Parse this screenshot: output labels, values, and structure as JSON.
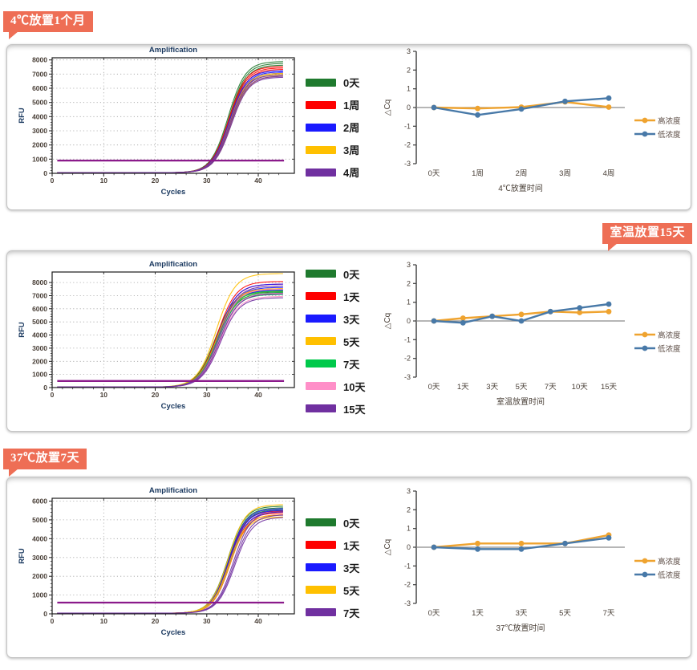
{
  "panels": [
    {
      "badge": {
        "label": "4℃放置1个月",
        "align": "left",
        "color": "#ee6e55"
      }
    },
    {
      "badge": {
        "label": "室温放置15天",
        "align": "right",
        "color": "#ee6e55"
      }
    },
    {
      "badge": {
        "label": "37℃放置7天",
        "align": "left",
        "color": "#ee6e55"
      }
    }
  ],
  "dcq_legend_labels": {
    "high": "高浓度",
    "low": "低浓度"
  },
  "chart_data": [
    {
      "id": "amplification-4c",
      "type": "line",
      "title": "Amplification",
      "xlabel": "Cycles",
      "ylabel": "RFU",
      "xlim": [
        0,
        47
      ],
      "xticks": [
        0,
        10,
        20,
        30,
        40
      ],
      "x_minor_step": 2,
      "ylim": [
        0,
        8150
      ],
      "yticks_max": 8000,
      "ytick_step": 1000,
      "y_minor_step": 200,
      "grid": "dotted",
      "legend_position": "right-of-plot",
      "threshold_line": {
        "y": 900,
        "color": "#8b1a8b"
      },
      "baseline_rfu": 40,
      "sigmoid_k": 0.6,
      "series": [
        {
          "name": "0天",
          "color": "#1f7a2e",
          "ct": 34.3,
          "plateaus": [
            7850,
            7720,
            7600
          ]
        },
        {
          "name": "1周",
          "color": "#fe0000",
          "ct": 34.4,
          "plateaus": [
            7500,
            7400,
            7300
          ]
        },
        {
          "name": "2周",
          "color": "#1a1aff",
          "ct": 34.5,
          "plateaus": [
            7200,
            7120,
            7040
          ]
        },
        {
          "name": "3周",
          "color": "#ffc000",
          "ct": 34.6,
          "plateaus": [
            7020,
            6940,
            6830
          ]
        },
        {
          "name": "4周",
          "color": "#7030a0",
          "ct": 34.6,
          "plateaus": [
            6900,
            6810,
            6740
          ]
        }
      ]
    },
    {
      "id": "delta-cq-4c",
      "type": "line",
      "title": "",
      "xlabel": "4℃放置时间",
      "ylabel": "△Cq",
      "ylim": [
        -3,
        3
      ],
      "ytick_step": 1,
      "grid": "off",
      "legend_position": "right",
      "categories": [
        "0天",
        "1周",
        "2周",
        "3周",
        "4周"
      ],
      "series": [
        {
          "name": "高浓度",
          "color": "#efa32f",
          "values": [
            0,
            -0.05,
            0.02,
            0.3,
            0.02
          ]
        },
        {
          "name": "低浓度",
          "color": "#4879a8",
          "values": [
            0,
            -0.4,
            -0.08,
            0.33,
            0.5
          ]
        }
      ]
    },
    {
      "id": "amplification-room-temp",
      "type": "line",
      "title": "Amplification",
      "xlabel": "Cycles",
      "ylabel": "RFU",
      "xlim": [
        0,
        47
      ],
      "xticks": [
        0,
        10,
        20,
        30,
        40
      ],
      "x_minor_step": 2,
      "ylim": [
        0,
        8800
      ],
      "yticks_max": 8000,
      "ytick_step": 1000,
      "y_minor_step": 200,
      "grid": "dotted",
      "legend_position": "right-of-plot",
      "threshold_line": {
        "y": 500,
        "color": "#8b1a8b"
      },
      "baseline_rfu": 30,
      "sigmoid_k": 0.55,
      "series": [
        {
          "name": "0天",
          "color": "#1f7a2e",
          "ct": 31.8,
          "plateaus": [
            7350,
            7250,
            7150
          ]
        },
        {
          "name": "1天",
          "color": "#fe0000",
          "ct": 32.2,
          "plateaus": [
            8050,
            7850,
            7500
          ]
        },
        {
          "name": "3天",
          "color": "#1a1aff",
          "ct": 32.3,
          "plateaus": [
            7850,
            7600,
            7400
          ]
        },
        {
          "name": "5天",
          "color": "#ffc000",
          "ct": 32.0,
          "plateaus": [
            8650,
            7500,
            7300
          ]
        },
        {
          "name": "7天",
          "color": "#00c94b",
          "ct": 32.2,
          "plateaus": [
            7300,
            7180,
            7060
          ]
        },
        {
          "name": "10天",
          "color": "#ff8fc8",
          "ct": 32.4,
          "plateaus": [
            7450,
            7150,
            6900
          ]
        },
        {
          "name": "15天",
          "color": "#7030a0",
          "ct": 32.5,
          "plateaus": [
            7700,
            7100,
            6800
          ]
        }
      ]
    },
    {
      "id": "delta-cq-room-temp",
      "type": "line",
      "title": "",
      "xlabel": "室温放置时间",
      "ylabel": "△Cq",
      "ylim": [
        -3,
        3
      ],
      "ytick_step": 1,
      "grid": "off",
      "legend_position": "right",
      "categories": [
        "0天",
        "1天",
        "3天",
        "5天",
        "7天",
        "10天",
        "15天"
      ],
      "series": [
        {
          "name": "高浓度",
          "color": "#efa32f",
          "values": [
            0,
            0.15,
            0.25,
            0.35,
            0.5,
            0.45,
            0.5
          ]
        },
        {
          "name": "低浓度",
          "color": "#4879a8",
          "values": [
            0,
            -0.1,
            0.25,
            0,
            0.5,
            0.7,
            0.9
          ]
        }
      ]
    },
    {
      "id": "amplification-37c",
      "type": "line",
      "title": "Amplification",
      "xlabel": "Cycles",
      "ylabel": "RFU",
      "xlim": [
        0,
        47
      ],
      "xticks": [
        0,
        10,
        20,
        30,
        40
      ],
      "x_minor_step": 2,
      "ylim": [
        0,
        6150
      ],
      "yticks_max": 6000,
      "ytick_step": 1000,
      "y_minor_step": 200,
      "grid": "dotted",
      "legend_position": "right-of-plot",
      "threshold_line": {
        "y": 600,
        "color": "#8b1a8b"
      },
      "baseline_rfu": 30,
      "sigmoid_k": 0.6,
      "series": [
        {
          "name": "0天",
          "color": "#1f7a2e",
          "ct": 34.2,
          "plateaus": [
            5700,
            5620,
            5520
          ]
        },
        {
          "name": "1天",
          "color": "#fe0000",
          "ct": 34.4,
          "plateaus": [
            5450,
            5350,
            5250
          ]
        },
        {
          "name": "3天",
          "color": "#1a1aff",
          "ct": 34.4,
          "plateaus": [
            5570,
            5480,
            5400
          ]
        },
        {
          "name": "5天",
          "color": "#ffc000",
          "ct": 34.3,
          "plateaus": [
            5780,
            5230,
            5130
          ]
        },
        {
          "name": "7天",
          "color": "#7030a0",
          "ct": 35.3,
          "plateaus": [
            5420,
            5230,
            5100
          ]
        }
      ]
    },
    {
      "id": "delta-cq-37c",
      "type": "line",
      "title": "",
      "xlabel": "37℃放置时间",
      "ylabel": "△Cq",
      "ylim": [
        -3,
        3
      ],
      "ytick_step": 1,
      "grid": "off",
      "legend_position": "right",
      "categories": [
        "0天",
        "1天",
        "3天",
        "5天",
        "7天"
      ],
      "series": [
        {
          "name": "高浓度",
          "color": "#efa32f",
          "values": [
            0,
            0.2,
            0.2,
            0.2,
            0.65
          ]
        },
        {
          "name": "低浓度",
          "color": "#4879a8",
          "values": [
            0,
            -0.1,
            -0.1,
            0.2,
            0.5
          ]
        }
      ]
    }
  ]
}
